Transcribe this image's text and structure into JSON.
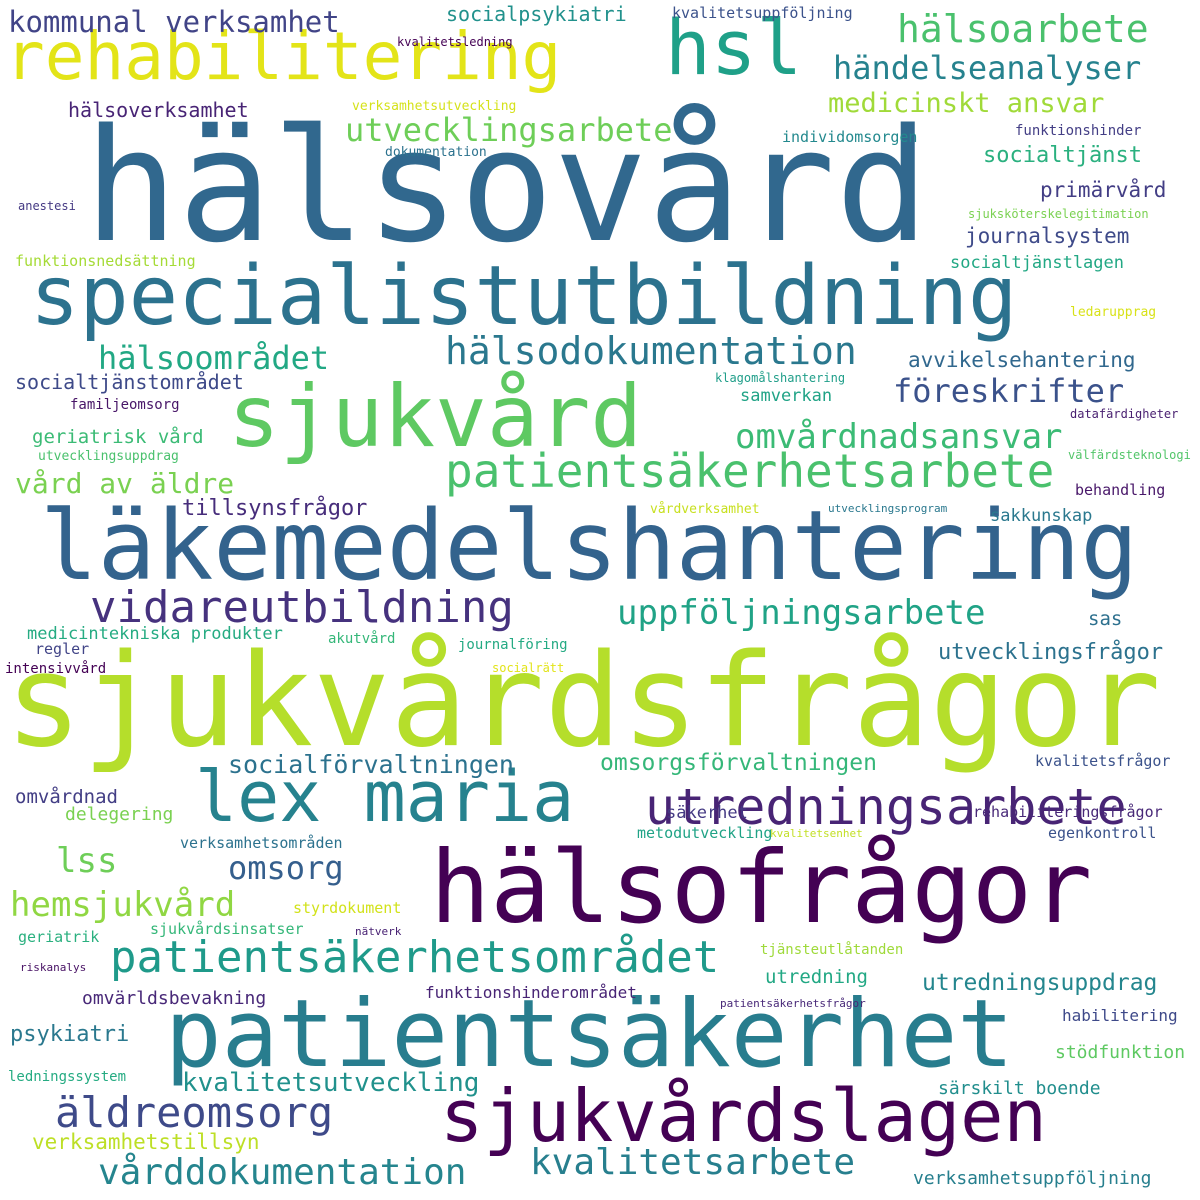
{
  "words": [
    {
      "text": "sjukvårdsfrågor",
      "color": "#b5de2b"
    },
    {
      "text": "hälsovård",
      "color": "#31688e"
    },
    {
      "text": "läkemedelshantering",
      "color": "#33638d"
    },
    {
      "text": "specialistutbildning",
      "color": "#2c728e"
    },
    {
      "text": "hälsofrågor",
      "color": "#440154"
    },
    {
      "text": "patientsäkerhet",
      "color": "#287d8e"
    },
    {
      "text": "sjukvård",
      "color": "#5ec962"
    },
    {
      "text": "lex maria",
      "color": "#26828e"
    },
    {
      "text": "rehabilitering",
      "color": "#e3e418"
    },
    {
      "text": "sjukvårdslagen",
      "color": "#440154"
    },
    {
      "text": "hsl",
      "color": "#1fa088"
    },
    {
      "text": "utredningsarbete",
      "color": "#482475"
    },
    {
      "text": "patientsäkerhetsarbete",
      "color": "#4ac16d"
    },
    {
      "text": "patientsäkerhetsområdet",
      "color": "#1f9a8a"
    },
    {
      "text": "vidareutbildning",
      "color": "#46327e"
    },
    {
      "text": "hälsodokumentation",
      "color": "#2a788e"
    },
    {
      "text": "äldreomsorg",
      "color": "#3e4a89"
    },
    {
      "text": "kvalitetsarbete",
      "color": "#277f8e"
    },
    {
      "text": "vårddokumentation",
      "color": "#25858e"
    },
    {
      "text": "hälsoarbete",
      "color": "#4ac16d"
    },
    {
      "text": "uppföljningsarbete",
      "color": "#20a386"
    },
    {
      "text": "omvårdnadsansvar",
      "color": "#3bbb75"
    },
    {
      "text": "föreskrifter",
      "color": "#3b528b"
    },
    {
      "text": "hemsjukvård",
      "color": "#90d743"
    },
    {
      "text": "händelseanalyser",
      "color": "#26828e"
    },
    {
      "text": "kommunal verksamhet",
      "color": "#414487"
    },
    {
      "text": "utvecklingsarbete",
      "color": "#6ece58"
    },
    {
      "text": "medicinskt ansvar",
      "color": "#a0da39"
    },
    {
      "text": "hälsoområdet",
      "color": "#22a884"
    },
    {
      "text": "kvalitetsutveckling",
      "color": "#21918c"
    },
    {
      "text": "socialförvaltningen",
      "color": "#2c728e"
    },
    {
      "text": "vård av äldre",
      "color": "#7ad151"
    },
    {
      "text": "omsorg",
      "color": "#355f8d"
    },
    {
      "text": "lss",
      "color": "#6ece58"
    },
    {
      "text": "omsorgsförvaltningen",
      "color": "#35b779"
    },
    {
      "text": "utredningsuppdrag",
      "color": "#24868e"
    },
    {
      "text": "utvecklingsfrågor",
      "color": "#2c728e"
    },
    {
      "text": "tillsynsfrågor",
      "color": "#472d7b"
    },
    {
      "text": "psykiatri",
      "color": "#2a788e"
    },
    {
      "text": "verksamhetstillsyn",
      "color": "#bddf26"
    },
    {
      "text": "journalsystem",
      "color": "#3e4a89"
    },
    {
      "text": "avvikelsehantering",
      "color": "#31688e"
    },
    {
      "text": "socialtjänst",
      "color": "#2ab07f"
    },
    {
      "text": "socialpsykiatri",
      "color": "#21918c"
    },
    {
      "text": "primärvård",
      "color": "#433e85"
    },
    {
      "text": "socialtjänstområdet",
      "color": "#3e4a89"
    },
    {
      "text": "hälsoverksamhet",
      "color": "#482475"
    },
    {
      "text": "geriatrisk vård",
      "color": "#3bbb75"
    },
    {
      "text": "omvårdnad",
      "color": "#433e85"
    },
    {
      "text": "omvärldsbevakning",
      "color": "#482878"
    },
    {
      "text": "särskilt boende",
      "color": "#218e8d"
    },
    {
      "text": "verksamhetsuppföljning",
      "color": "#277f8e"
    },
    {
      "text": "sakkunskap",
      "color": "#2a788e"
    },
    {
      "text": "medicintekniska produkter",
      "color": "#25ab82"
    },
    {
      "text": "funktionshinderområdet",
      "color": "#482475"
    },
    {
      "text": "delegering",
      "color": "#7ad151"
    },
    {
      "text": "stödfunktion",
      "color": "#5ec962"
    },
    {
      "text": "habilitering",
      "color": "#3e4989"
    },
    {
      "text": "socialtjänstlagen",
      "color": "#22a884"
    },
    {
      "text": "säkerhet",
      "color": "#443983"
    },
    {
      "text": "utredning",
      "color": "#22a884"
    },
    {
      "text": "samverkan",
      "color": "#20a386"
    },
    {
      "text": "sas",
      "color": "#2d708e"
    },
    {
      "text": "kvalitetsfrågor",
      "color": "#3b528b"
    },
    {
      "text": "egenkontroll",
      "color": "#3b528b"
    },
    {
      "text": "rehabiliteringsfrågor",
      "color": "#482878"
    },
    {
      "text": "styrdokument",
      "color": "#d2e21b"
    },
    {
      "text": "metodutveckling",
      "color": "#20a386"
    },
    {
      "text": "verksamhetsområden",
      "color": "#2c728e"
    },
    {
      "text": "sjukvårdsinsatser",
      "color": "#35b779"
    },
    {
      "text": "kvalitetsuppföljning",
      "color": "#3b528b"
    },
    {
      "text": "individomsorgen",
      "color": "#23898e"
    },
    {
      "text": "funktionshinder",
      "color": "#433e85"
    },
    {
      "text": "tjänsteutlåtanden",
      "color": "#9fda3a"
    },
    {
      "text": "journalföring",
      "color": "#24aa83"
    },
    {
      "text": "ledarupprag",
      "color": "#d8e219"
    },
    {
      "text": "behandling",
      "color": "#481769"
    },
    {
      "text": "familjeomsorg",
      "color": "#481668"
    },
    {
      "text": "funktionsnedsättning",
      "color": "#a5db36"
    },
    {
      "text": "ledningssystem",
      "color": "#25ab82"
    },
    {
      "text": "geriatrik",
      "color": "#2ab07f"
    },
    {
      "text": "utvecklingsuppdrag",
      "color": "#4ac16d"
    },
    {
      "text": "regler",
      "color": "#414487"
    },
    {
      "text": "intensivvård",
      "color": "#440154"
    },
    {
      "text": "akutvård",
      "color": "#35b779"
    },
    {
      "text": "dokumentation",
      "color": "#2c728e"
    },
    {
      "text": "verksamhetsutveckling",
      "color": "#d5e21a"
    },
    {
      "text": "kvalitetsledning",
      "color": "#440154"
    },
    {
      "text": "anestesi",
      "color": "#443983"
    },
    {
      "text": "sjuksköterskelegitimation",
      "color": "#7ad151"
    },
    {
      "text": "klagomålshantering",
      "color": "#1f9e89"
    },
    {
      "text": "datafärdigheter",
      "color": "#481f70"
    },
    {
      "text": "välfärdsteknologi",
      "color": "#52c569"
    },
    {
      "text": "vårdverksamhet",
      "color": "#c8e020"
    },
    {
      "text": "utvecklingsprogram",
      "color": "#2a788e"
    },
    {
      "text": "socialrätt",
      "color": "#e2e418"
    },
    {
      "text": "kvalitetsenhet",
      "color": "#c2df23"
    },
    {
      "text": "nätverk",
      "color": "#482173"
    },
    {
      "text": "riskanalys",
      "color": "#471164"
    },
    {
      "text": "patientsäkerhetsfrågor",
      "color": "#482878"
    }
  ]
}
